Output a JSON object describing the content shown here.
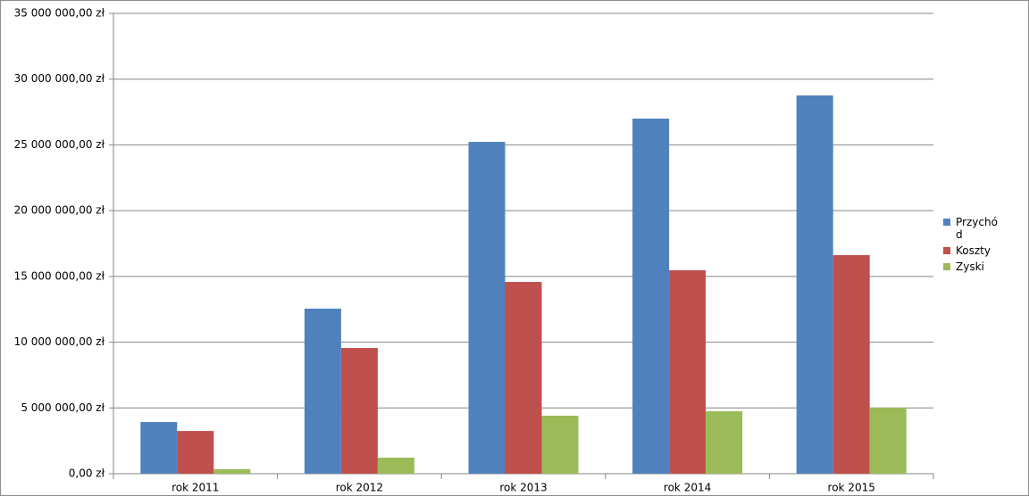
{
  "chart_data": {
    "type": "bar",
    "categories": [
      "rok 2011",
      "rok 2012",
      "rok 2013",
      "rok 2014",
      "rok 2015"
    ],
    "series": [
      {
        "name": "Przychód",
        "color": "#4f81bd",
        "values": [
          3930000,
          12550000,
          25230000,
          27000000,
          28760000
        ]
      },
      {
        "name": "Koszty",
        "color": "#c0504d",
        "values": [
          3250000,
          9560000,
          14580000,
          15470000,
          16620000
        ]
      },
      {
        "name": "Zyski",
        "color": "#9bbb59",
        "values": [
          340000,
          1220000,
          4410000,
          4750000,
          5020000
        ]
      }
    ],
    "ylim": [
      0,
      35000000
    ],
    "yticks": [
      {
        "value": 0,
        "label": "0,00 zł"
      },
      {
        "value": 5000000,
        "label": "5 000 000,00 zł"
      },
      {
        "value": 10000000,
        "label": "10 000 000,00 zł"
      },
      {
        "value": 15000000,
        "label": "15 000 000,00 zł"
      },
      {
        "value": 20000000,
        "label": "20 000 000,00 zł"
      },
      {
        "value": 25000000,
        "label": "25 000 000,00 zł"
      },
      {
        "value": 30000000,
        "label": "30 000 000,00 zł"
      },
      {
        "value": 35000000,
        "label": "35 000 000,00 zł"
      }
    ],
    "grid": true,
    "legend": "right"
  }
}
